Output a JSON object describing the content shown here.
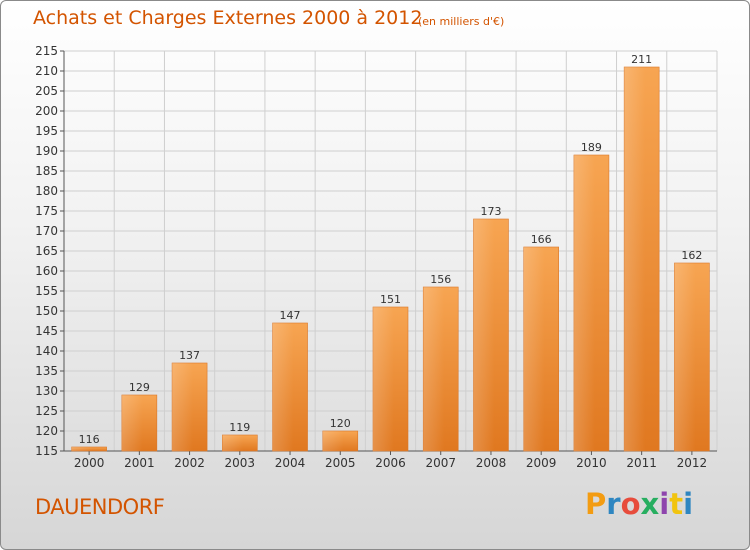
{
  "header": {
    "title": "Achats et Charges Externes 2000 à 2012",
    "subtitle": "(en milliers d'€)"
  },
  "footer": {
    "location": "DAUENDORF",
    "logo_text": "Proxiti"
  },
  "colors": {
    "title": "#d35400",
    "bar_top": "#f7a552",
    "bar_bottom": "#e07820",
    "grid": "#cfcfcf",
    "logo_letters": [
      "#f39c12",
      "#2e86c1",
      "#e74c3c",
      "#27ae60",
      "#8e44ad",
      "#f1c40f",
      "#2e86c1"
    ]
  },
  "chart_data": {
    "type": "bar",
    "title": "Achats et Charges Externes 2000 à 2012",
    "subtitle": "(en milliers d'€)",
    "xlabel": "",
    "ylabel": "",
    "categories": [
      "2000",
      "2001",
      "2002",
      "2003",
      "2004",
      "2005",
      "2006",
      "2007",
      "2008",
      "2009",
      "2010",
      "2011",
      "2012"
    ],
    "values": [
      116,
      129,
      137,
      119,
      147,
      120,
      151,
      156,
      173,
      166,
      189,
      211,
      162
    ],
    "ylim": [
      115,
      215
    ],
    "yticks": [
      115,
      120,
      125,
      130,
      135,
      140,
      145,
      150,
      155,
      160,
      165,
      170,
      175,
      180,
      185,
      190,
      195,
      200,
      205,
      210,
      215
    ],
    "grid": true,
    "legend": "none"
  }
}
